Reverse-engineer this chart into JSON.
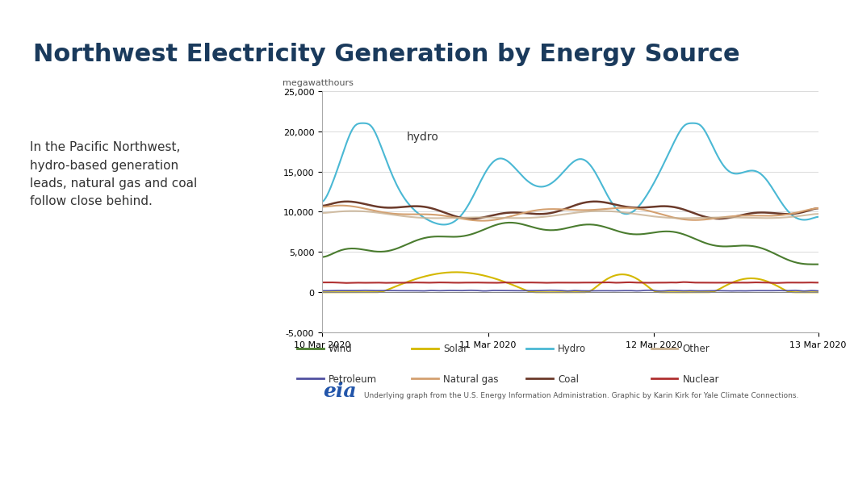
{
  "title": "Northwest Electricity Generation by Energy Source",
  "title_bg_color": "#b8d4e8",
  "title_color": "#1a3a5c",
  "body_bg_color": "#ffffff",
  "description": "In the Pacific Northwest,\nhydro-based generation\nleads, natural gas and coal\nfollow close behind.",
  "ylabel": "megawatthours",
  "ylim": [
    -5000,
    25000
  ],
  "yticks": [
    -5000,
    0,
    5000,
    10000,
    15000,
    20000,
    25000
  ],
  "x_labels": [
    "10 Mar 2020",
    "11 Mar 2020",
    "12 Mar 2020",
    "13 Mar 2020"
  ],
  "hydro_annotation": "hydro",
  "footer_text": "Underlying graph from the U.S. Energy Information Administration. Graphic by Karin Kirk for Yale Climate Connections.",
  "footer_color": "#555555",
  "bottom_bar_color": "#1a3a5c",
  "series": {
    "Wind": {
      "color": "#4a7c2f",
      "linewidth": 1.5
    },
    "Solar": {
      "color": "#d4b800",
      "linewidth": 1.5
    },
    "Hydro": {
      "color": "#4ab8d4",
      "linewidth": 1.5
    },
    "Other": {
      "color": "#c8b090",
      "linewidth": 1.5
    },
    "Petroleum": {
      "color": "#5050a0",
      "linewidth": 1.2
    },
    "Natural gas": {
      "color": "#d4a070",
      "linewidth": 1.5
    },
    "Coal": {
      "color": "#6b3a2a",
      "linewidth": 1.8
    },
    "Nuclear": {
      "color": "#b03030",
      "linewidth": 1.5
    }
  },
  "n_points": 288
}
